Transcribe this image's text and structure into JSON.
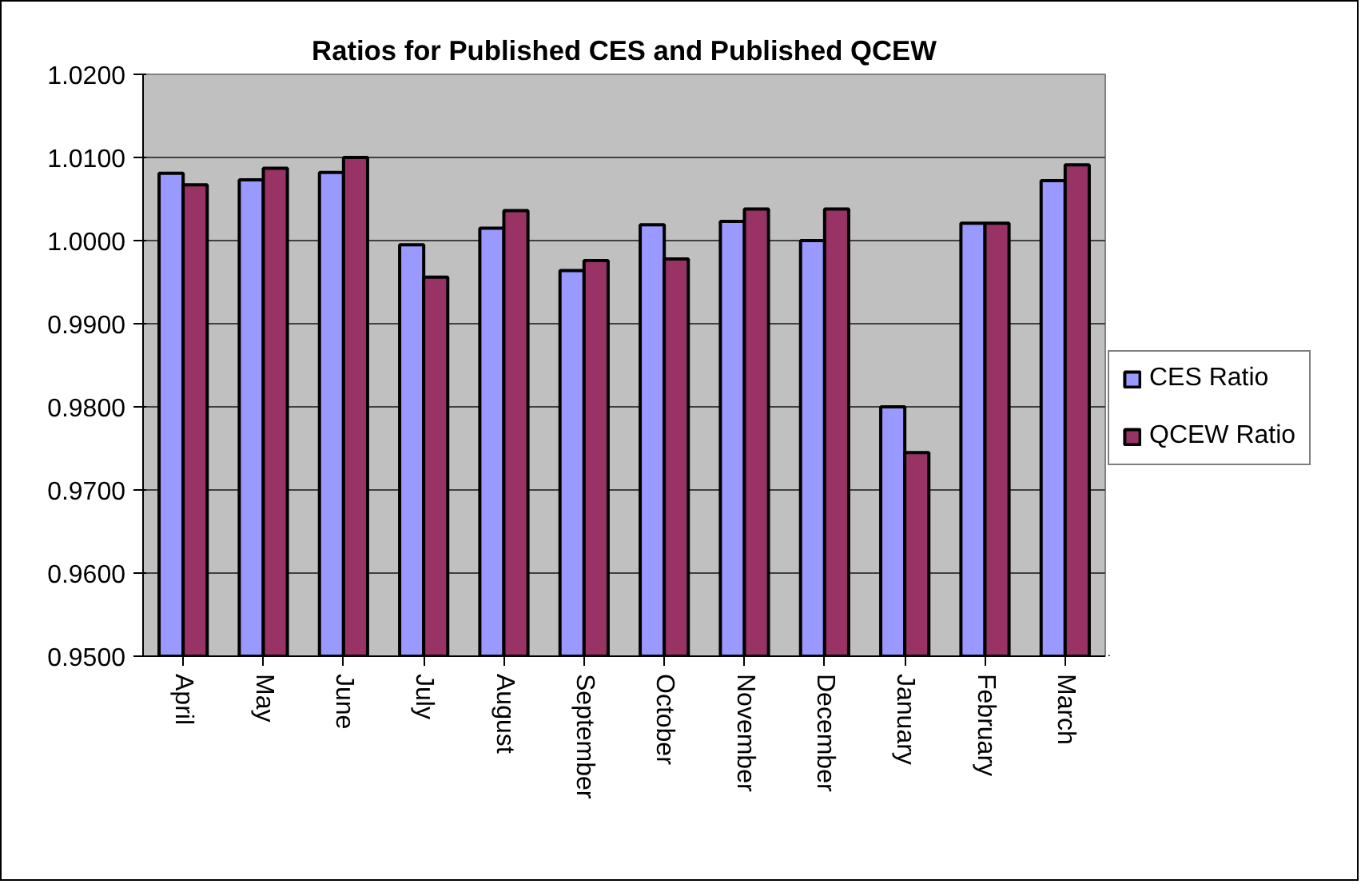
{
  "chart_data": {
    "type": "bar",
    "title": "Ratios for Published CES and Published QCEW",
    "categories": [
      "April",
      "May",
      "June",
      "July",
      "August",
      "September",
      "October",
      "November",
      "December",
      "January",
      "February",
      "March"
    ],
    "series": [
      {
        "name": "CES Ratio",
        "color": "#9999ff",
        "values": [
          1.0081,
          1.0073,
          1.0082,
          0.9995,
          1.0015,
          0.9964,
          1.0019,
          1.0023,
          1.0,
          0.98,
          1.0021,
          1.0072
        ]
      },
      {
        "name": "QCEW Ratio",
        "color": "#993366",
        "values": [
          1.0067,
          1.0087,
          1.01,
          0.9956,
          1.0036,
          0.9976,
          0.9978,
          1.0038,
          1.0038,
          0.9745,
          1.0021,
          1.0091
        ]
      }
    ],
    "ylim": [
      0.95,
      1.02
    ],
    "yticks": [
      {
        "value": 0.95,
        "label": "0.9500"
      },
      {
        "value": 0.96,
        "label": "0.9600"
      },
      {
        "value": 0.97,
        "label": "0.9700"
      },
      {
        "value": 0.98,
        "label": "0.9800"
      },
      {
        "value": 0.99,
        "label": "0.9900"
      },
      {
        "value": 1.0,
        "label": "1.0000"
      },
      {
        "value": 1.01,
        "label": "1.0100"
      },
      {
        "value": 1.02,
        "label": "1.0200"
      }
    ],
    "grid": "y",
    "legend": "right"
  }
}
